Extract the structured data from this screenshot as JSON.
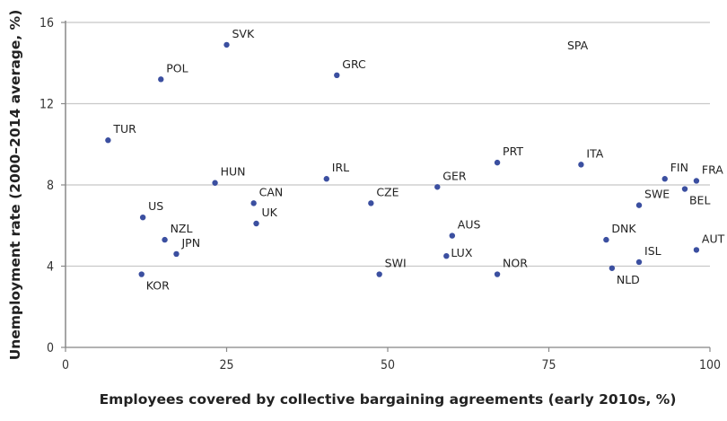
{
  "chart_data": {
    "type": "scatter",
    "title": "",
    "xlabel": "Employees covered by collective bargaining agreements (early 2010s, %)",
    "ylabel": "Unemployment rate (2000–2014 average, %)",
    "xlim": [
      0,
      100
    ],
    "ylim": [
      0,
      16
    ],
    "xticks": [
      0,
      25,
      50,
      75,
      100
    ],
    "yticks": [
      0,
      4,
      8,
      12,
      16
    ],
    "grid": "horizontal",
    "marker_color": "#3b4fa0",
    "points": [
      {
        "label": "SVK",
        "x": 25.0,
        "y": 14.9
      },
      {
        "label": "POL",
        "x": 14.8,
        "y": 13.2
      },
      {
        "label": "GRC",
        "x": 42.1,
        "y": 13.4
      },
      {
        "label": "TUR",
        "x": 6.6,
        "y": 10.2
      },
      {
        "label": "HUN",
        "x": 23.2,
        "y": 8.1
      },
      {
        "label": "IRL",
        "x": 40.5,
        "y": 8.3
      },
      {
        "label": "CAN",
        "x": 29.2,
        "y": 7.1
      },
      {
        "label": "UK",
        "x": 29.6,
        "y": 6.1
      },
      {
        "label": "US",
        "x": 12.0,
        "y": 6.4
      },
      {
        "label": "NZL",
        "x": 15.4,
        "y": 5.3
      },
      {
        "label": "JPN",
        "x": 17.2,
        "y": 4.6
      },
      {
        "label": "KOR",
        "x": 11.8,
        "y": 3.6
      },
      {
        "label": "CZE",
        "x": 47.4,
        "y": 7.1
      },
      {
        "label": "GER",
        "x": 57.7,
        "y": 7.9
      },
      {
        "label": "PRT",
        "x": 67.0,
        "y": 9.1
      },
      {
        "label": "ITA",
        "x": 80.0,
        "y": 9.0
      },
      {
        "label": "FIN",
        "x": 93.0,
        "y": 8.3
      },
      {
        "label": "FRA",
        "x": 97.9,
        "y": 8.2
      },
      {
        "label": "BEL",
        "x": 96.1,
        "y": 7.8
      },
      {
        "label": "SWE",
        "x": 89.0,
        "y": 7.0
      },
      {
        "label": "AUS",
        "x": 60.0,
        "y": 5.5
      },
      {
        "label": "LUX",
        "x": 59.1,
        "y": 4.5
      },
      {
        "label": "DNK",
        "x": 83.9,
        "y": 5.3
      },
      {
        "label": "AUT",
        "x": 97.9,
        "y": 4.8
      },
      {
        "label": "ISL",
        "x": 89.0,
        "y": 4.2
      },
      {
        "label": "NLD",
        "x": 84.8,
        "y": 3.9
      },
      {
        "label": "NOR",
        "x": 67.0,
        "y": 3.6
      },
      {
        "label": "SWI",
        "x": 48.7,
        "y": 3.6
      }
    ],
    "annotations": [
      {
        "text": "SPA"
      }
    ]
  }
}
